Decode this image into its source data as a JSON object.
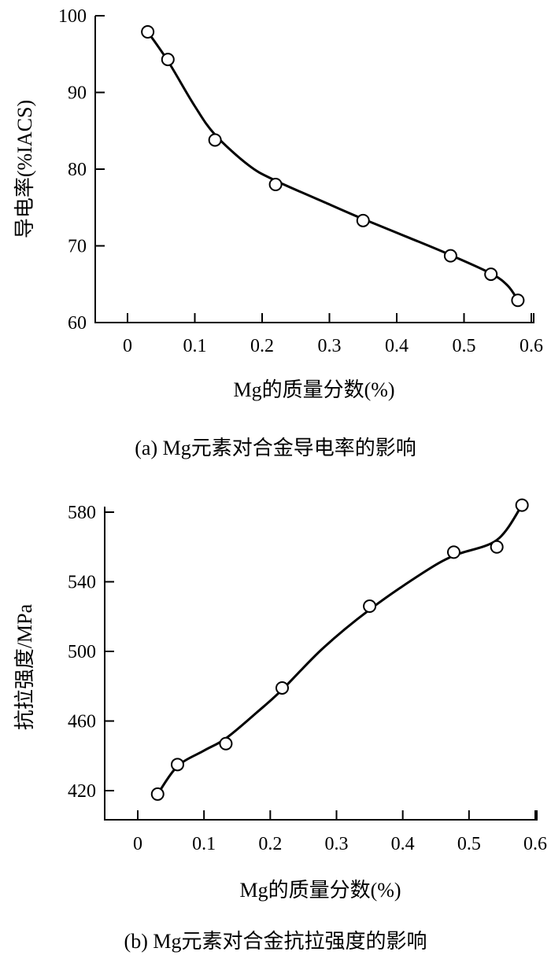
{
  "chart_data": [
    {
      "type": "line",
      "caption": "(a) Mg元素对合金导电率的影响",
      "xlabel": "Mg的质量分数(%)",
      "ylabel": "导电率(%IACS)",
      "xlim": [
        -0.05,
        0.6
      ],
      "ylim": [
        60,
        100
      ],
      "x_ticks": [
        "0",
        "0.1",
        "0.2",
        "0.3",
        "0.4",
        "0.5",
        "0.6"
      ],
      "y_ticks": [
        "60",
        "70",
        "80",
        "90",
        "100"
      ],
      "grid": false,
      "series": [
        {
          "marker": "open-circle",
          "points": [
            {
              "x": 0.03,
              "y": 97.9
            },
            {
              "x": 0.06,
              "y": 94.3
            },
            {
              "x": 0.13,
              "y": 83.8
            },
            {
              "x": 0.22,
              "y": 78.0
            },
            {
              "x": 0.35,
              "y": 73.3
            },
            {
              "x": 0.48,
              "y": 68.7
            },
            {
              "x": 0.54,
              "y": 66.3
            },
            {
              "x": 0.58,
              "y": 62.9
            }
          ],
          "curve": [
            {
              "x": 0.03,
              "y": 97.9
            },
            {
              "x": 0.06,
              "y": 94.1
            },
            {
              "x": 0.1,
              "y": 88.2
            },
            {
              "x": 0.13,
              "y": 84.5
            },
            {
              "x": 0.18,
              "y": 80.5
            },
            {
              "x": 0.22,
              "y": 78.5
            },
            {
              "x": 0.3,
              "y": 75.4
            },
            {
              "x": 0.35,
              "y": 73.5
            },
            {
              "x": 0.42,
              "y": 71.0
            },
            {
              "x": 0.48,
              "y": 68.8
            },
            {
              "x": 0.54,
              "y": 66.4
            },
            {
              "x": 0.565,
              "y": 64.8
            },
            {
              "x": 0.58,
              "y": 62.9
            }
          ]
        }
      ]
    },
    {
      "type": "line",
      "caption": "(b) Mg元素对合金抗拉强度的影响",
      "xlabel": "Mg的质量分数(%)",
      "ylabel": "抗拉强度/MPa",
      "xlim": [
        -0.05,
        0.6
      ],
      "ylim": [
        400,
        580
      ],
      "x_ticks": [
        "0",
        "0.1",
        "0.2",
        "0.3",
        "0.4",
        "0.5",
        "0.6"
      ],
      "y_ticks": [
        "420",
        "460",
        "500",
        "540",
        "580"
      ],
      "grid": false,
      "series": [
        {
          "marker": "open-circle",
          "points": [
            {
              "x": 0.03,
              "y": 418
            },
            {
              "x": 0.06,
              "y": 435
            },
            {
              "x": 0.133,
              "y": 447
            },
            {
              "x": 0.218,
              "y": 479
            },
            {
              "x": 0.35,
              "y": 526
            },
            {
              "x": 0.477,
              "y": 557
            },
            {
              "x": 0.542,
              "y": 560
            },
            {
              "x": 0.58,
              "y": 584
            }
          ],
          "curve": [
            {
              "x": 0.03,
              "y": 418
            },
            {
              "x": 0.06,
              "y": 434
            },
            {
              "x": 0.1,
              "y": 443
            },
            {
              "x": 0.133,
              "y": 450
            },
            {
              "x": 0.18,
              "y": 465
            },
            {
              "x": 0.218,
              "y": 478
            },
            {
              "x": 0.28,
              "y": 502
            },
            {
              "x": 0.35,
              "y": 524
            },
            {
              "x": 0.43,
              "y": 545
            },
            {
              "x": 0.477,
              "y": 555
            },
            {
              "x": 0.542,
              "y": 564
            },
            {
              "x": 0.58,
              "y": 584
            }
          ]
        }
      ]
    }
  ]
}
